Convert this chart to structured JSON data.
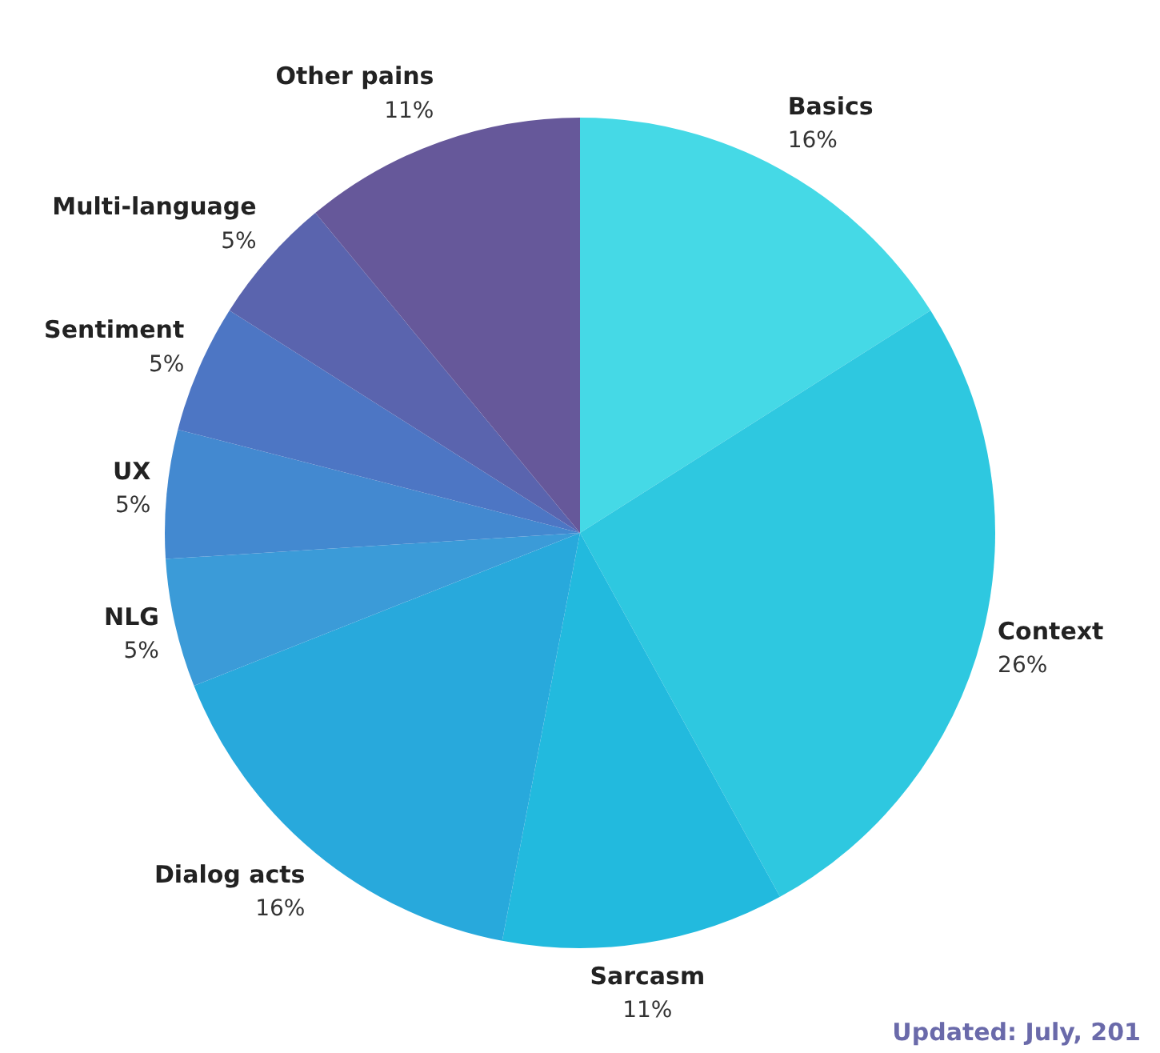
{
  "chart_data": {
    "type": "pie",
    "categories": [
      "Basics",
      "Context",
      "Sarcasm",
      "Dialog acts",
      "NLG",
      "UX",
      "Sentiment",
      "Multi-language",
      "Other pains"
    ],
    "values": [
      16,
      26,
      11,
      16,
      5,
      5,
      5,
      5,
      11
    ],
    "value_labels": [
      "16%",
      "26%",
      "11%",
      "16%",
      "5%",
      "5%",
      "5%",
      "5%",
      "11%"
    ],
    "colors": [
      "#45d9e6",
      "#2ec8e0",
      "#22bade",
      "#28a9dc",
      "#3b9bd8",
      "#4389d0",
      "#4d76c4",
      "#5a64ae",
      "#66589a"
    ],
    "legend": false,
    "annotations": [
      "Updated: July, 201"
    ]
  }
}
